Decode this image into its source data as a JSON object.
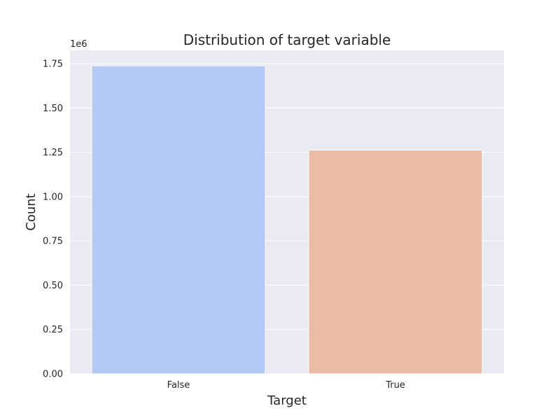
{
  "chart_data": {
    "type": "bar",
    "title": "Distribution of target variable",
    "xlabel": "Target",
    "ylabel": "Count",
    "categories": [
      "False",
      "True"
    ],
    "values": [
      1738000,
      1262000
    ],
    "colors": [
      "#b3c8f4",
      "#eabba5"
    ],
    "ylim": [
      0,
      1825000
    ],
    "yticks": [
      0,
      250000,
      500000,
      750000,
      1000000,
      1250000,
      1500000,
      1750000
    ],
    "ytick_labels": [
      "0.00",
      "0.25",
      "0.50",
      "0.75",
      "1.00",
      "1.25",
      "1.50",
      "1.75"
    ],
    "y_offset_label": "1e6",
    "grid": true,
    "background": "#eaeaf2"
  }
}
